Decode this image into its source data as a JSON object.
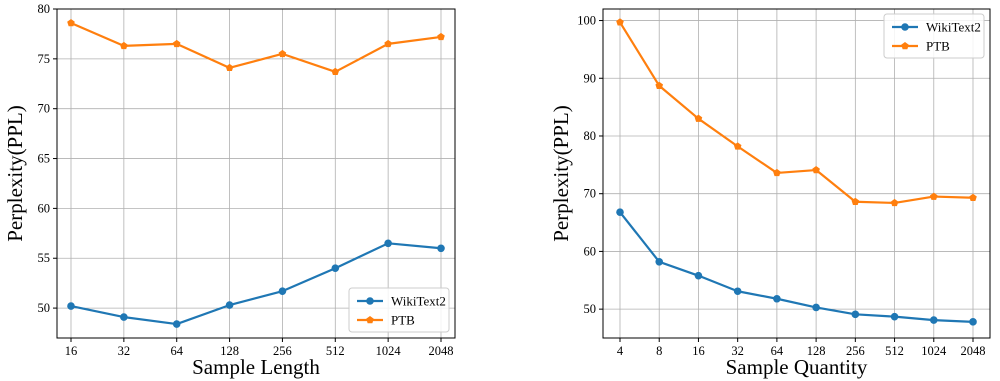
{
  "chart_data": [
    {
      "type": "line",
      "title": "",
      "xlabel": "Sample Length",
      "ylabel": "Perplexity(PPL)",
      "categories": [
        "16",
        "32",
        "64",
        "128",
        "256",
        "512",
        "1024",
        "2048"
      ],
      "ylim": [
        47,
        80
      ],
      "yticks": [
        50,
        55,
        60,
        65,
        70,
        75,
        80
      ],
      "grid": true,
      "legend_position": "lower-right",
      "series": [
        {
          "name": "WikiText2",
          "color": "#1f77b4",
          "values": [
            50.2,
            49.1,
            48.4,
            50.3,
            51.7,
            54.0,
            56.5,
            56.0
          ]
        },
        {
          "name": "PTB",
          "color": "#ff7f0e",
          "values": [
            78.6,
            76.3,
            76.5,
            74.1,
            75.5,
            73.7,
            76.5,
            77.2
          ]
        }
      ]
    },
    {
      "type": "line",
      "title": "",
      "xlabel": "Sample Quantity",
      "ylabel": "Perplexity(PPL)",
      "categories": [
        "4",
        "8",
        "16",
        "32",
        "64",
        "128",
        "256",
        "512",
        "1024",
        "2048"
      ],
      "ylim": [
        45,
        102
      ],
      "yticks": [
        50,
        60,
        70,
        80,
        90,
        100
      ],
      "grid": true,
      "legend_position": "upper-right",
      "series": [
        {
          "name": "WikiText2",
          "color": "#1f77b4",
          "values": [
            66.8,
            58.2,
            55.8,
            53.1,
            51.8,
            50.3,
            49.1,
            48.7,
            48.1,
            47.8
          ]
        },
        {
          "name": "PTB",
          "color": "#ff7f0e",
          "values": [
            99.7,
            88.7,
            83.0,
            78.2,
            73.6,
            74.1,
            68.6,
            68.4,
            69.5,
            69.3
          ]
        }
      ]
    }
  ]
}
